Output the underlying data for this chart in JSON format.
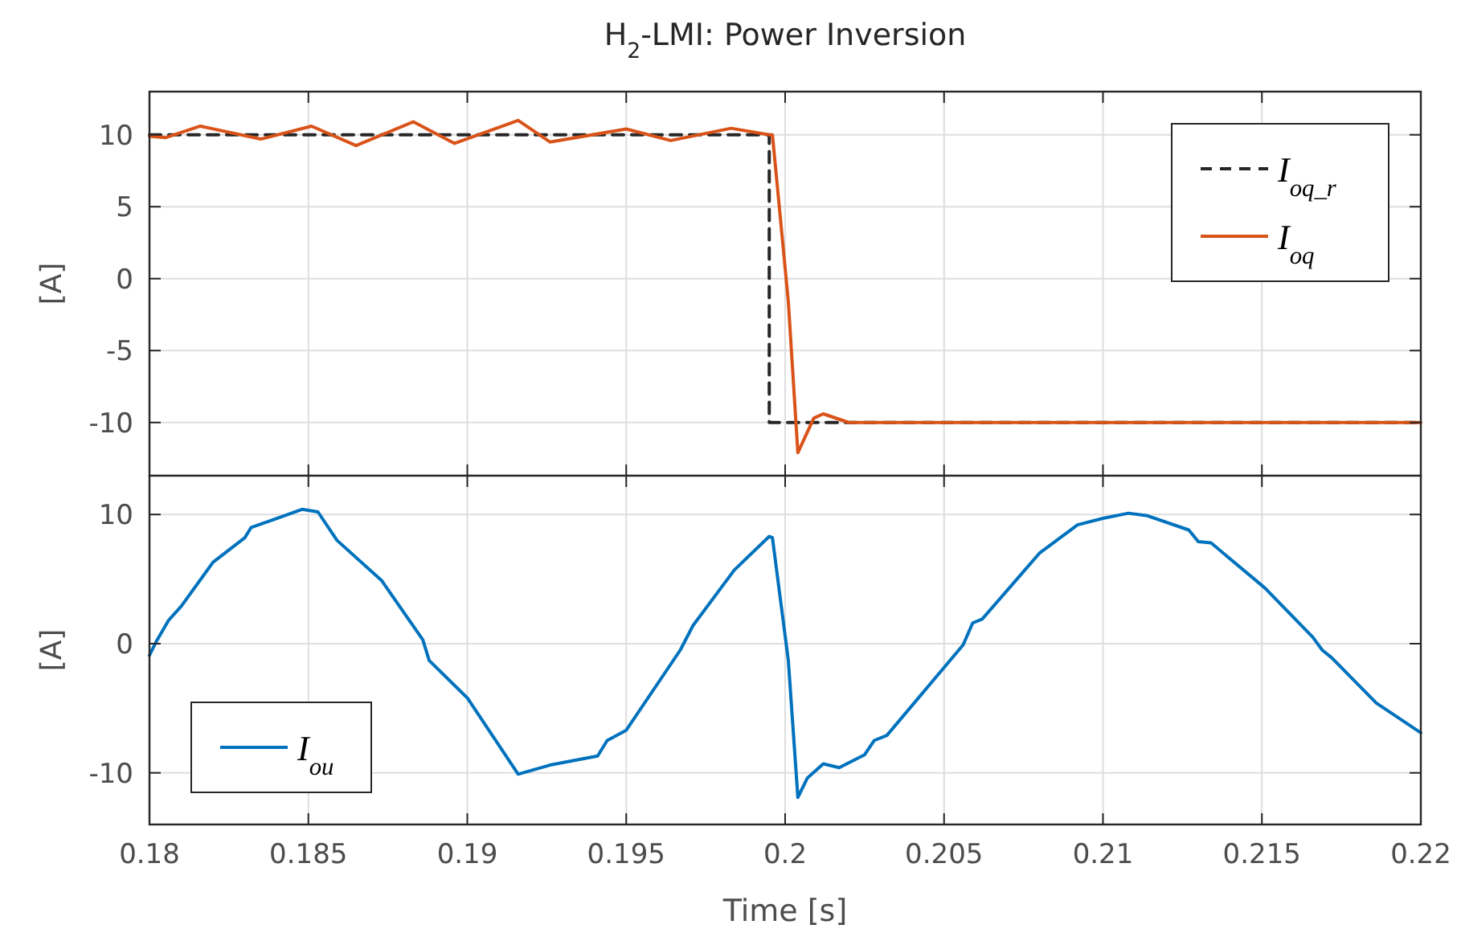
{
  "chart_data": [
    {
      "type": "line",
      "title": "H$_{2}$-LMI: Power Inversion",
      "ylabel": "[A]",
      "xlim": [
        0.18,
        0.22
      ],
      "xticks": [
        0.18,
        0.185,
        0.19,
        0.195,
        0.2,
        0.205,
        0.21,
        0.215,
        0.22
      ],
      "ylim": [
        -13.7,
        13
      ],
      "yticks": [
        -10,
        -5,
        0,
        5,
        10
      ],
      "grid": true,
      "legend": "top right",
      "tick_labels": "y",
      "series": [
        {
          "name": "I$_{oq_r}$",
          "color": "#262626",
          "line_style": "dashed",
          "x": [
            0.18,
            0.1995,
            0.1995,
            0.22
          ],
          "values": [
            10,
            10,
            -10,
            -10
          ]
        },
        {
          "name": "I$_{oq}$",
          "color": "#d95319",
          "line_style": "solid",
          "x": [
            0.18,
            0.1805,
            0.1816,
            0.1835,
            0.1851,
            0.1865,
            0.1883,
            0.1896,
            0.1916,
            0.1926,
            0.195,
            0.1964,
            0.1983,
            0.1995,
            0.1996,
            0.2001,
            0.2004,
            0.2009,
            0.2012,
            0.202,
            0.205,
            0.21,
            0.215,
            0.22
          ],
          "values": [
            9.9,
            9.8,
            10.6,
            9.7,
            10.6,
            9.25,
            10.9,
            9.4,
            11.0,
            9.5,
            10.4,
            9.6,
            10.45,
            10,
            10,
            -1.6,
            -12.1,
            -9.7,
            -9.4,
            -10,
            -10,
            -10,
            -10,
            -10
          ]
        }
      ]
    },
    {
      "type": "line",
      "xlabel": "Time [s]",
      "ylabel": "[A]",
      "xlim": [
        0.18,
        0.22
      ],
      "xticks": [
        0.18,
        0.185,
        0.19,
        0.195,
        0.2,
        0.205,
        0.21,
        0.215,
        0.22
      ],
      "ylim": [
        -14,
        13
      ],
      "yticks": [
        -10,
        0,
        10
      ],
      "grid": true,
      "legend": "bottom left",
      "series": [
        {
          "name": "I$_{ou}$",
          "color": "#0072bd",
          "line_style": "solid",
          "x": [
            0.18,
            0.1802,
            0.1806,
            0.181,
            0.182,
            0.183,
            0.1832,
            0.1839,
            0.1848,
            0.1853,
            0.1859,
            0.1873,
            0.1886,
            0.1888,
            0.19,
            0.1916,
            0.1926,
            0.1941,
            0.1944,
            0.195,
            0.1967,
            0.1971,
            0.1984,
            0.1995,
            0.1996,
            0.2001,
            0.2004,
            0.2007,
            0.2012,
            0.2017,
            0.2025,
            0.2028,
            0.2032,
            0.2056,
            0.2059,
            0.2062,
            0.208,
            0.2092,
            0.21,
            0.2108,
            0.2114,
            0.2127,
            0.213,
            0.2134,
            0.2151,
            0.2166,
            0.2169,
            0.2172,
            0.2186,
            0.22
          ],
          "values": [
            -0.9,
            0.1,
            1.8,
            2.9,
            6.3,
            8.2,
            9.0,
            9.6,
            10.4,
            10.2,
            8.0,
            4.9,
            0.3,
            -1.3,
            -4.2,
            -10.1,
            -9.4,
            -8.7,
            -7.5,
            -6.7,
            -0.5,
            1.4,
            5.7,
            8.3,
            8.2,
            -1.3,
            -11.9,
            -10.4,
            -9.3,
            -9.6,
            -8.6,
            -7.5,
            -7.1,
            -0.1,
            1.6,
            1.9,
            7.0,
            9.2,
            9.7,
            10.1,
            9.9,
            8.8,
            7.9,
            7.8,
            4.3,
            0.5,
            -0.5,
            -1.1,
            -4.6,
            -6.9
          ]
        }
      ]
    }
  ]
}
